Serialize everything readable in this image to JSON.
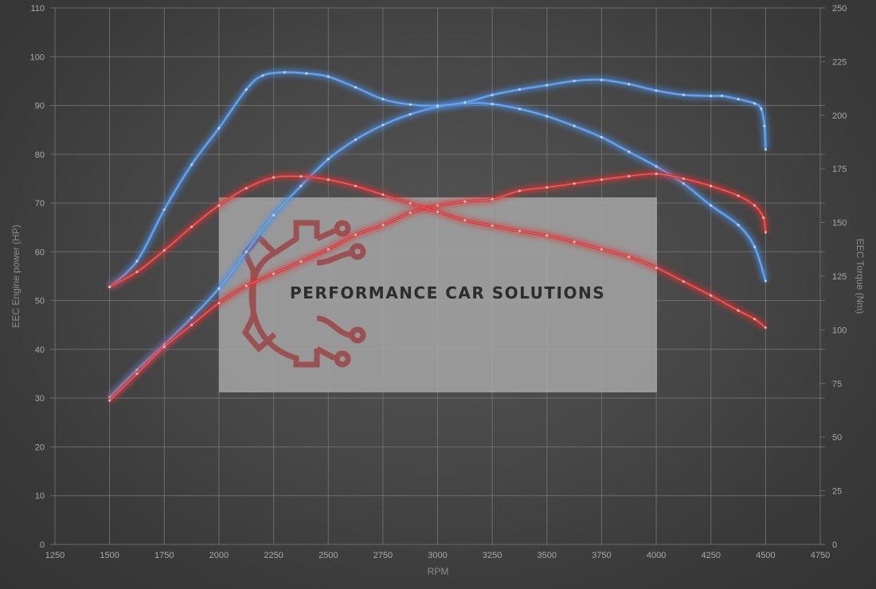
{
  "chart_data": {
    "type": "line",
    "xlabel": "RPM",
    "ylabel_left": "EEC Engine power (HP)",
    "ylabel_right": "EEC Torque (Nm)",
    "xlim": [
      1250,
      4750
    ],
    "ylim_left": [
      0,
      110
    ],
    "ylim_right": [
      0,
      250
    ],
    "x_ticks": [
      1250,
      1500,
      1750,
      2000,
      2250,
      2500,
      2750,
      3000,
      3250,
      3500,
      3750,
      4000,
      4250,
      4500,
      4750
    ],
    "y_ticks_left": [
      0,
      10,
      20,
      30,
      40,
      50,
      60,
      70,
      80,
      90,
      100,
      110
    ],
    "y_ticks_right": [
      0,
      25,
      50,
      75,
      100,
      125,
      150,
      175,
      200,
      225,
      250
    ],
    "grid": true,
    "series": [
      {
        "axis": "left",
        "color": "#4d8fe0",
        "points": [
          [
            1500,
            30.2
          ],
          [
            1625,
            35.8
          ],
          [
            1750,
            41
          ],
          [
            1875,
            46.5
          ],
          [
            2000,
            52.5
          ],
          [
            2125,
            60
          ],
          [
            2250,
            67.5
          ],
          [
            2375,
            73.5
          ],
          [
            2500,
            79
          ],
          [
            2625,
            83
          ],
          [
            2750,
            86
          ],
          [
            2875,
            88.2
          ],
          [
            3000,
            89.7
          ],
          [
            3125,
            90.5
          ],
          [
            3250,
            90.3
          ],
          [
            3375,
            89.3
          ],
          [
            3500,
            87.8
          ],
          [
            3625,
            85.8
          ],
          [
            3750,
            83.5
          ],
          [
            3875,
            80.5
          ],
          [
            4000,
            77.5
          ],
          [
            4125,
            74
          ],
          [
            4250,
            69.5
          ],
          [
            4375,
            65.5
          ],
          [
            4450,
            61
          ],
          [
            4500,
            54
          ]
        ]
      },
      {
        "axis": "right",
        "color": "#4d8fe0",
        "points": [
          [
            1500,
            120
          ],
          [
            1625,
            132
          ],
          [
            1750,
            156
          ],
          [
            1875,
            177
          ],
          [
            2000,
            194
          ],
          [
            2125,
            212
          ],
          [
            2200,
            218.5
          ],
          [
            2300,
            220
          ],
          [
            2400,
            219.5
          ],
          [
            2500,
            218
          ],
          [
            2625,
            213
          ],
          [
            2750,
            207.5
          ],
          [
            2875,
            205
          ],
          [
            3000,
            204.5
          ],
          [
            3125,
            206
          ],
          [
            3250,
            209.5
          ],
          [
            3375,
            212
          ],
          [
            3500,
            214
          ],
          [
            3625,
            216
          ],
          [
            3750,
            216.5
          ],
          [
            3875,
            214.5
          ],
          [
            4000,
            211.5
          ],
          [
            4125,
            209.5
          ],
          [
            4250,
            209
          ],
          [
            4300,
            209
          ],
          [
            4375,
            207.5
          ],
          [
            4450,
            205.5
          ],
          [
            4480,
            203
          ],
          [
            4495,
            195
          ],
          [
            4500,
            184
          ]
        ]
      },
      {
        "axis": "left",
        "color": "#d93434",
        "points": [
          [
            1500,
            29.5
          ],
          [
            1625,
            35
          ],
          [
            1750,
            40.5
          ],
          [
            1875,
            45
          ],
          [
            2000,
            49.5
          ],
          [
            2125,
            53
          ],
          [
            2250,
            55.5
          ],
          [
            2375,
            58
          ],
          [
            2500,
            60.5
          ],
          [
            2625,
            63.5
          ],
          [
            2750,
            65.5
          ],
          [
            2875,
            68
          ],
          [
            3000,
            69.5
          ],
          [
            3125,
            70.3
          ],
          [
            3250,
            70.8
          ],
          [
            3375,
            72.5
          ],
          [
            3500,
            73.2
          ],
          [
            3625,
            74
          ],
          [
            3750,
            74.8
          ],
          [
            3875,
            75.5
          ],
          [
            4000,
            76
          ],
          [
            4125,
            75
          ],
          [
            4250,
            73.5
          ],
          [
            4375,
            71.5
          ],
          [
            4450,
            69.5
          ],
          [
            4490,
            67
          ],
          [
            4500,
            64
          ]
        ]
      },
      {
        "axis": "right",
        "color": "#d93434",
        "points": [
          [
            1500,
            120
          ],
          [
            1625,
            127
          ],
          [
            1750,
            137
          ],
          [
            1875,
            148
          ],
          [
            2000,
            158
          ],
          [
            2125,
            166
          ],
          [
            2250,
            171
          ],
          [
            2375,
            171.5
          ],
          [
            2500,
            170
          ],
          [
            2625,
            167
          ],
          [
            2750,
            163
          ],
          [
            2875,
            159
          ],
          [
            3000,
            155
          ],
          [
            3125,
            151
          ],
          [
            3250,
            148.5
          ],
          [
            3375,
            146
          ],
          [
            3500,
            144
          ],
          [
            3625,
            141
          ],
          [
            3750,
            137.5
          ],
          [
            3875,
            134
          ],
          [
            4000,
            129
          ],
          [
            4125,
            122.5
          ],
          [
            4250,
            116
          ],
          [
            4375,
            109
          ],
          [
            4450,
            105
          ],
          [
            4500,
            101
          ]
        ]
      }
    ],
    "watermark": {
      "text": "PERFORMANCE CAR SOLUTIONS",
      "logo": "gear-circuit-logo",
      "logo_color": "#9c3a3a",
      "panel_color": "#a6a6a6"
    }
  }
}
